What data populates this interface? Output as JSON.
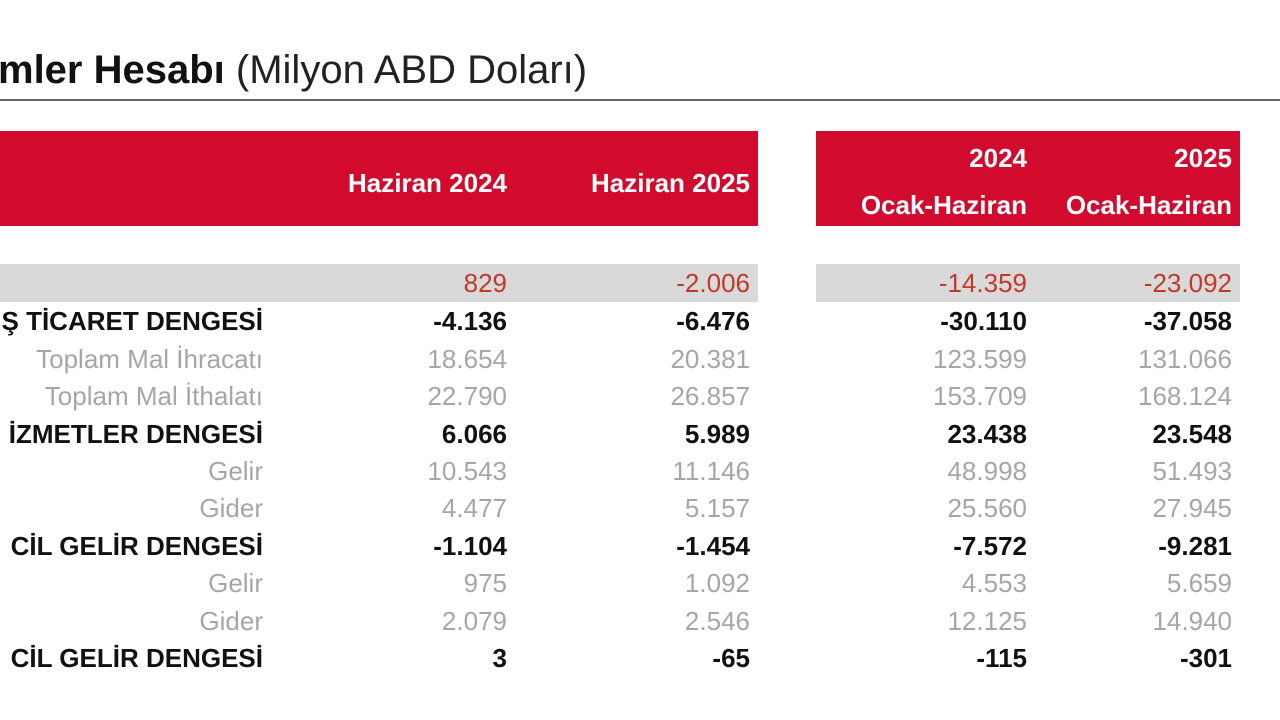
{
  "title": {
    "bold": "mler Hesabı",
    "unit": "(Milyon ABD Doları)"
  },
  "colors": {
    "header_bg": "#d20a2e",
    "highlight_bg": "#d9d9d9",
    "negative_red": "#c0392b"
  },
  "header": {
    "col1": "Haziran 2024",
    "col2": "Haziran 2025",
    "col3_top": "2024",
    "col3_bottom": "Ocak-Haziran",
    "col4_top": "2025",
    "col4_bottom": "Ocak-Haziran"
  },
  "rows": [
    {
      "label": "",
      "values": [
        "829",
        "-2.006",
        "-14.359",
        "-23.092"
      ]
    },
    {
      "label": "Ş TİCARET DENGESİ",
      "values": [
        "-4.136",
        "-6.476",
        "-30.110",
        "-37.058"
      ]
    },
    {
      "label": "Toplam Mal İhracatı",
      "values": [
        "18.654",
        "20.381",
        "123.599",
        "131.066"
      ]
    },
    {
      "label": "Toplam Mal İthalatı",
      "values": [
        "22.790",
        "26.857",
        "153.709",
        "168.124"
      ]
    },
    {
      "label": "İZMETLER DENGESİ",
      "values": [
        "6.066",
        "5.989",
        "23.438",
        "23.548"
      ]
    },
    {
      "label": "Gelir",
      "values": [
        "10.543",
        "11.146",
        "48.998",
        "51.493"
      ]
    },
    {
      "label": "Gider",
      "values": [
        "4.477",
        "5.157",
        "25.560",
        "27.945"
      ]
    },
    {
      "label": "CİL GELİR DENGESİ",
      "values": [
        "-1.104",
        "-1.454",
        "-7.572",
        "-9.281"
      ]
    },
    {
      "label": "Gelir",
      "values": [
        "975",
        "1.092",
        "4.553",
        "5.659"
      ]
    },
    {
      "label": "Gider",
      "values": [
        "2.079",
        "2.546",
        "12.125",
        "14.940"
      ]
    },
    {
      "label": "CİL GELİR DENGESİ",
      "values": [
        "3",
        "-65",
        "-115",
        "-301"
      ]
    }
  ]
}
